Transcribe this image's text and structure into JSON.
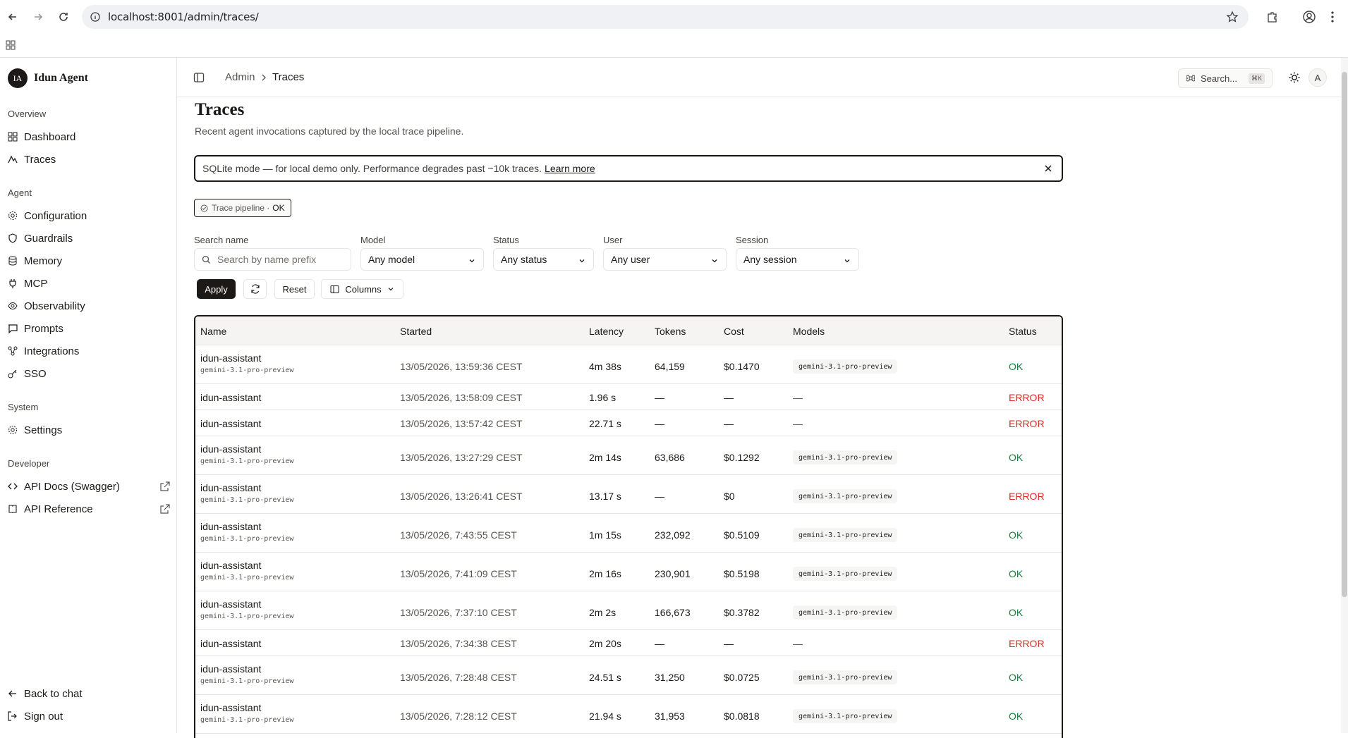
{
  "browser": {
    "url": "localhost:8001/admin/traces/"
  },
  "brand": {
    "initials": "IA",
    "name": "Idun Agent"
  },
  "sidebar": {
    "sections": [
      {
        "label": "Overview"
      },
      {
        "label": "Agent"
      },
      {
        "label": "System"
      },
      {
        "label": "Developer"
      }
    ],
    "items": [
      {
        "label": "Dashboard",
        "icon": "grid-icon"
      },
      {
        "label": "Traces",
        "icon": "activity-icon"
      },
      {
        "label": "Configuration",
        "icon": "gear-icon"
      },
      {
        "label": "Guardrails",
        "icon": "shield-icon"
      },
      {
        "label": "Memory",
        "icon": "database-icon"
      },
      {
        "label": "MCP",
        "icon": "plug-icon"
      },
      {
        "label": "Observability",
        "icon": "eye-icon"
      },
      {
        "label": "Prompts",
        "icon": "message-icon"
      },
      {
        "label": "Integrations",
        "icon": "network-icon"
      },
      {
        "label": "SSO",
        "icon": "key-icon"
      },
      {
        "label": "Settings",
        "icon": "gear-icon"
      },
      {
        "label": "API Docs (Swagger)",
        "icon": "code-icon"
      },
      {
        "label": "API Reference",
        "icon": "book-icon"
      }
    ],
    "footer": [
      {
        "label": "Back to chat",
        "icon": "arrow-left-icon"
      },
      {
        "label": "Sign out",
        "icon": "logout-icon"
      }
    ]
  },
  "header": {
    "breadcrumb_root": "Admin",
    "breadcrumb_current": "Traces",
    "search_label": "Search...",
    "search_kbd": "⌘K",
    "avatar": "A"
  },
  "page": {
    "title": "Traces",
    "subtitle": "Recent agent invocations captured by the local trace pipeline."
  },
  "banner": {
    "text": "SQLite mode — for local demo only. Performance degrades past ~10k traces.",
    "link": "Learn more"
  },
  "pipeline": {
    "label": "Trace pipeline ·",
    "status": "OK"
  },
  "filters": {
    "search_label": "Search name",
    "search_placeholder": "Search by name prefix",
    "model_label": "Model",
    "model_value": "Any model",
    "status_label": "Status",
    "status_value": "Any status",
    "user_label": "User",
    "user_value": "Any user",
    "session_label": "Session",
    "session_value": "Any session"
  },
  "actions": {
    "apply": "Apply",
    "reset": "Reset",
    "columns": "Columns"
  },
  "table": {
    "headers": [
      "Name",
      "Started",
      "Latency",
      "Tokens",
      "Cost",
      "Models",
      "Status"
    ],
    "rows": [
      {
        "name": "idun-assistant",
        "sub": "gemini-3.1-pro-preview",
        "started": "13/05/2026, 13:59:36 CEST",
        "latency": "4m 38s",
        "tokens": "64,159",
        "cost": "$0.1470",
        "model": "gemini-3.1-pro-preview",
        "status": "OK"
      },
      {
        "name": "idun-assistant",
        "sub": "",
        "started": "13/05/2026, 13:58:09 CEST",
        "latency": "1.96 s",
        "tokens": "—",
        "cost": "—",
        "model": "—",
        "status": "ERROR"
      },
      {
        "name": "idun-assistant",
        "sub": "",
        "started": "13/05/2026, 13:57:42 CEST",
        "latency": "22.71 s",
        "tokens": "—",
        "cost": "—",
        "model": "—",
        "status": "ERROR"
      },
      {
        "name": "idun-assistant",
        "sub": "gemini-3.1-pro-preview",
        "started": "13/05/2026, 13:27:29 CEST",
        "latency": "2m 14s",
        "tokens": "63,686",
        "cost": "$0.1292",
        "model": "gemini-3.1-pro-preview",
        "status": "OK"
      },
      {
        "name": "idun-assistant",
        "sub": "gemini-3.1-pro-preview",
        "started": "13/05/2026, 13:26:41 CEST",
        "latency": "13.17 s",
        "tokens": "—",
        "cost": "$0",
        "model": "gemini-3.1-pro-preview",
        "status": "ERROR"
      },
      {
        "name": "idun-assistant",
        "sub": "gemini-3.1-pro-preview",
        "started": "13/05/2026, 7:43:55 CEST",
        "latency": "1m 15s",
        "tokens": "232,092",
        "cost": "$0.5109",
        "model": "gemini-3.1-pro-preview",
        "status": "OK"
      },
      {
        "name": "idun-assistant",
        "sub": "gemini-3.1-pro-preview",
        "started": "13/05/2026, 7:41:09 CEST",
        "latency": "2m 16s",
        "tokens": "230,901",
        "cost": "$0.5198",
        "model": "gemini-3.1-pro-preview",
        "status": "OK"
      },
      {
        "name": "idun-assistant",
        "sub": "gemini-3.1-pro-preview",
        "started": "13/05/2026, 7:37:10 CEST",
        "latency": "2m 2s",
        "tokens": "166,673",
        "cost": "$0.3782",
        "model": "gemini-3.1-pro-preview",
        "status": "OK"
      },
      {
        "name": "idun-assistant",
        "sub": "",
        "started": "13/05/2026, 7:34:38 CEST",
        "latency": "2m 20s",
        "tokens": "—",
        "cost": "—",
        "model": "—",
        "status": "ERROR"
      },
      {
        "name": "idun-assistant",
        "sub": "gemini-3.1-pro-preview",
        "started": "13/05/2026, 7:28:48 CEST",
        "latency": "24.51 s",
        "tokens": "31,250",
        "cost": "$0.0725",
        "model": "gemini-3.1-pro-preview",
        "status": "OK"
      },
      {
        "name": "idun-assistant",
        "sub": "gemini-3.1-pro-preview",
        "started": "13/05/2026, 7:28:12 CEST",
        "latency": "21.94 s",
        "tokens": "31,953",
        "cost": "$0.0818",
        "model": "gemini-3.1-pro-preview",
        "status": "OK"
      }
    ]
  },
  "colors": {
    "ok": "#15803d",
    "error": "#dc2626",
    "accent": "#1c1917"
  }
}
